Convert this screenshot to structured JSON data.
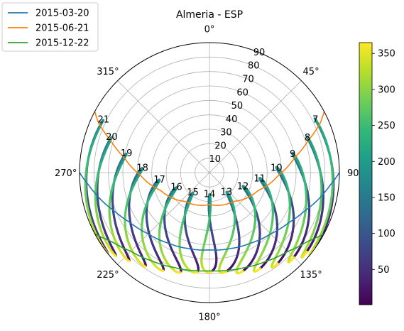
{
  "chart_data": {
    "type": "polar-line",
    "title": "Almeria - ESP",
    "polar": {
      "theta_zero": "N",
      "theta_direction": "clockwise",
      "theta_ticks_deg": [
        0,
        45,
        90,
        135,
        180,
        225,
        270,
        315
      ],
      "theta_tick_labels": [
        "0°",
        "45°",
        "90",
        "135°",
        "180°",
        "225°",
        "270°",
        "315°"
      ],
      "r_ticks": [
        10,
        20,
        30,
        40,
        50,
        60,
        70,
        80,
        90
      ],
      "r_tick_labels": [
        "10",
        "20",
        "30",
        "40",
        "50",
        "60",
        "70",
        "80",
        "90"
      ],
      "rlim": [
        0,
        90
      ],
      "grid": true
    },
    "legend": {
      "placement": "top-left"
    },
    "series": [
      {
        "name": "2015-03-20",
        "color": "#1f77b4",
        "azimuth": [
          90,
          96,
          104,
          112,
          122,
          135,
          150,
          165,
          180,
          195,
          210,
          225,
          238,
          248,
          256,
          264,
          270
        ],
        "zenith": [
          90,
          84,
          77.5,
          71,
          65,
          60,
          56.5,
          54.5,
          53.5,
          54.5,
          56.5,
          60,
          65,
          71,
          77.5,
          84,
          90
        ]
      },
      {
        "name": "2015-06-21",
        "color": "#ff7f0e",
        "azimuth": [
          62,
          66,
          72,
          80,
          92,
          110,
          140,
          180,
          220,
          250,
          268,
          280,
          288,
          294,
          298
        ],
        "zenith": [
          90,
          84,
          72,
          60,
          48,
          36,
          26,
          22,
          26,
          36,
          48,
          60,
          72,
          84,
          90
        ]
      },
      {
        "name": "2015-12-22",
        "color": "#2ca02c",
        "azimuth": [
          118,
          125,
          135,
          147,
          160,
          173,
          180,
          187,
          200,
          213,
          225,
          235,
          242
        ],
        "zenith": [
          90,
          83,
          77,
          73,
          70,
          68.5,
          68,
          68.5,
          70,
          73,
          77,
          83,
          90
        ]
      }
    ],
    "hour_labels": {
      "labels": [
        "7",
        "8",
        "9",
        "10",
        "11",
        "12",
        "13",
        "14",
        "15",
        "16",
        "17",
        "18",
        "19",
        "20",
        "21"
      ],
      "azimuth": [
        63.5,
        70.5,
        77.5,
        86,
        97,
        112.5,
        139,
        180,
        220,
        246,
        262,
        274,
        283,
        290,
        296.5
      ],
      "zenith": [
        82,
        72,
        59,
        46.5,
        35,
        25,
        18,
        15,
        18,
        25,
        35,
        46.5,
        59,
        72,
        82
      ]
    },
    "analemmas": {
      "colormap": "viridis",
      "hours": [
        7,
        8,
        9,
        10,
        11,
        12,
        13,
        14,
        15,
        16,
        17,
        18,
        19,
        20,
        21
      ],
      "summer_point": {
        "azimuth": [
          63.5,
          70.5,
          77.5,
          86,
          97,
          112.5,
          139,
          180,
          220,
          246,
          262,
          274,
          283,
          290,
          296.5
        ],
        "zenith": [
          82,
          72,
          59,
          46.5,
          35,
          25,
          18,
          15,
          18,
          25,
          35,
          46.5,
          59,
          72,
          82
        ]
      },
      "winter_point": {
        "azimuth": [
          128,
          131,
          137,
          145,
          154,
          163,
          172,
          180,
          188,
          197,
          206,
          215,
          223,
          229,
          232
        ],
        "zenith": [
          90,
          87,
          83,
          79,
          75.5,
          72.5,
          70,
          69,
          70,
          72.5,
          75.5,
          79,
          83,
          87,
          90
        ]
      }
    },
    "colorbar": {
      "colormap": "viridis",
      "range": [
        1,
        365
      ],
      "ticks": [
        50,
        100,
        150,
        200,
        250,
        300,
        350
      ],
      "tick_labels": [
        "50",
        "100",
        "150",
        "200",
        "250",
        "300",
        "350"
      ]
    }
  }
}
